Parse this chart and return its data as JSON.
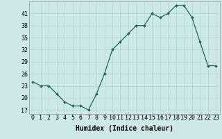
{
  "x": [
    0,
    1,
    2,
    3,
    4,
    5,
    6,
    7,
    8,
    9,
    10,
    11,
    12,
    13,
    14,
    15,
    16,
    17,
    18,
    19,
    20,
    21,
    22,
    23
  ],
  "y": [
    24,
    23,
    23,
    21,
    19,
    18,
    18,
    17,
    21,
    26,
    32,
    34,
    36,
    38,
    38,
    41,
    40,
    41,
    43,
    43,
    40,
    34,
    28,
    28
  ],
  "xlabel": "Humidex (Indice chaleur)",
  "ylim": [
    16,
    44
  ],
  "xlim": [
    -0.5,
    23.5
  ],
  "yticks": [
    17,
    20,
    23,
    26,
    29,
    32,
    35,
    38,
    41
  ],
  "xticks": [
    0,
    1,
    2,
    3,
    4,
    5,
    6,
    7,
    8,
    9,
    10,
    11,
    12,
    13,
    14,
    15,
    16,
    17,
    18,
    19,
    20,
    21,
    22,
    23
  ],
  "line_color": "#1a6b5a",
  "marker_color": "#1a6b5a",
  "bg_color": "#cce8e8",
  "grid_color": "#b8d8d8",
  "axis_fontsize": 6.5,
  "tick_fontsize": 6.0,
  "xlabel_fontsize": 7.0
}
